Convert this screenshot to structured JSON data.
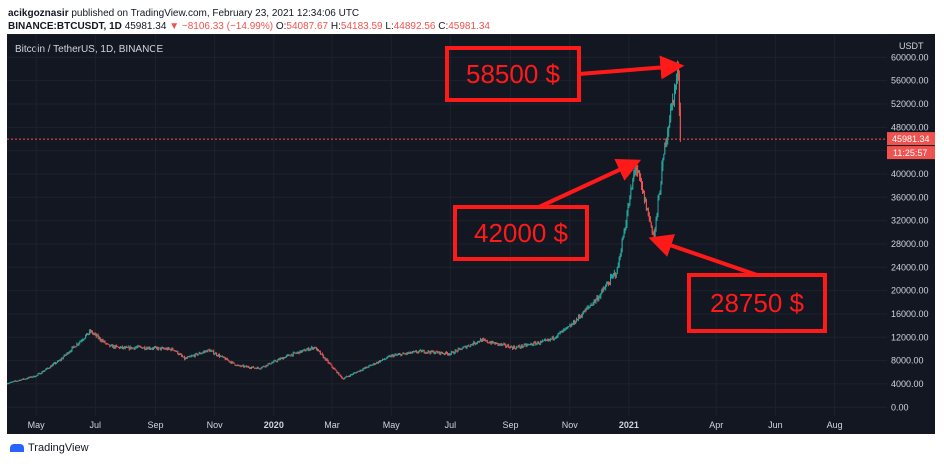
{
  "header": {
    "author": "acikgoznasir",
    "published": "published on TradingView.com, February 23, 2021 12:34:06 UTC",
    "symbol": "BINANCE:BTCUSDT, 1D",
    "price": "45981.34",
    "change": "▼ −8106.33 (−14.99%)",
    "o_label": "O:",
    "o_value": "54087.67",
    "h_label": "H:",
    "h_value": "54183.59",
    "l_label": "L:",
    "l_value": "44892.56",
    "c_label": "C:",
    "c_value": "45981.34"
  },
  "chart_data": {
    "type": "candlestick",
    "title": "Bitcoin / TetherUS, 1D, BINANCE",
    "currency": "USDT",
    "ylim": [
      -1500,
      64000
    ],
    "yticks": [
      "0.00",
      "4000.00",
      "8000.00",
      "12000.00",
      "16000.00",
      "20000.00",
      "24000.00",
      "28000.00",
      "32000.00",
      "36000.00",
      "40000.00",
      "44000.00",
      "48000.00",
      "52000.00",
      "56000.00",
      "60000.00",
      "64000.00"
    ],
    "xticks": [
      "May",
      "Jul",
      "Sep",
      "Nov",
      "2020",
      "Mar",
      "May",
      "Jul",
      "Sep",
      "Nov",
      "2021",
      "Apr",
      "Jun",
      "Aug"
    ],
    "last_price": "45981.34",
    "countdown": "11:25:57",
    "price_path": [
      [
        "2019-04-01",
        4100
      ],
      [
        "2019-05-01",
        5400
      ],
      [
        "2019-05-25",
        8000
      ],
      [
        "2019-06-26",
        13000
      ],
      [
        "2019-07-15",
        10500
      ],
      [
        "2019-08-01",
        10100
      ],
      [
        "2019-08-15",
        10300
      ],
      [
        "2019-09-20",
        9900
      ],
      [
        "2019-10-01",
        8300
      ],
      [
        "2019-10-26",
        9800
      ],
      [
        "2019-11-25",
        7100
      ],
      [
        "2019-12-17",
        6700
      ],
      [
        "2020-01-15",
        8800
      ],
      [
        "2020-02-12",
        10300
      ],
      [
        "2020-03-12",
        4900
      ],
      [
        "2020-04-01",
        6500
      ],
      [
        "2020-05-01",
        8800
      ],
      [
        "2020-06-01",
        9600
      ],
      [
        "2020-07-01",
        9200
      ],
      [
        "2020-08-01",
        11500
      ],
      [
        "2020-09-05",
        10200
      ],
      [
        "2020-10-10",
        11400
      ],
      [
        "2020-11-01",
        13800
      ],
      [
        "2020-12-01",
        19000
      ],
      [
        "2020-12-20",
        23500
      ],
      [
        "2021-01-08",
        41500
      ],
      [
        "2021-01-27",
        29200
      ],
      [
        "2021-02-08",
        46000
      ],
      [
        "2021-02-21",
        58000
      ],
      [
        "2021-02-23",
        45981
      ]
    ],
    "annotations": [
      {
        "label": "58500 $",
        "value": 58500,
        "date": "2021-02-21"
      },
      {
        "label": "42000 $",
        "value": 42000,
        "date": "2021-01-08"
      },
      {
        "label": "28750 $",
        "value": 28750,
        "date": "2021-01-27"
      }
    ]
  },
  "footer": {
    "brand": "TradingView"
  },
  "colors": {
    "up": "#26a69a",
    "down": "#ef5350",
    "bg": "#131722",
    "annotation": "#ff1a1a"
  }
}
